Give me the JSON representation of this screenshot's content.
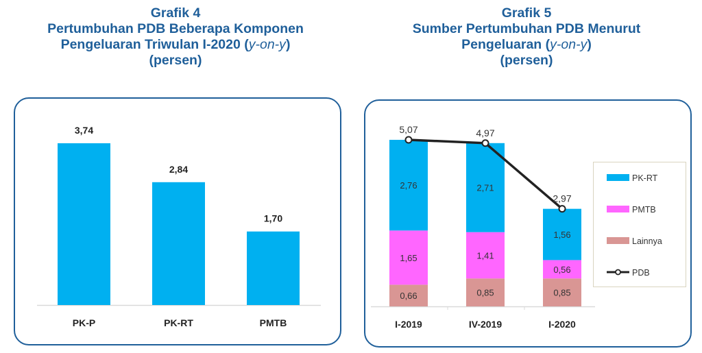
{
  "chart_data": [
    {
      "type": "bar",
      "title_lines": [
        "Grafik 4",
        "Pertumbuhan PDB Beberapa Komponen",
        "Pengeluaran Triwulan I-2020 ",
        "(persen)"
      ],
      "title_italic": "y-on-y",
      "categories": [
        "PK-P",
        "PK-RT",
        "PMTB"
      ],
      "values": [
        3.74,
        2.84,
        1.7
      ],
      "data_labels": [
        "3,74",
        "2,84",
        "1,70"
      ],
      "xlabel": "",
      "ylabel": "",
      "ylim": [
        0,
        3.74
      ],
      "grid": false,
      "bar_color": "#00b0f0"
    },
    {
      "type": "bar",
      "stacked": true,
      "title_lines": [
        "Grafik 5",
        "Sumber Pertumbuhan PDB Menurut",
        "Pengeluaran ",
        "(persen)"
      ],
      "title_italic": "y-on-y",
      "categories": [
        "I-2019",
        "IV-2019",
        "I-2020"
      ],
      "series": [
        {
          "name": "Lainnya",
          "values": [
            0.66,
            0.85,
            0.85
          ],
          "labels": [
            "0,66",
            "0,85",
            "0,85"
          ],
          "color": "#d99694"
        },
        {
          "name": "PMTB",
          "values": [
            1.65,
            1.41,
            0.56
          ],
          "labels": [
            "1,65",
            "1,41",
            "0,56"
          ],
          "color": "#ff66ff"
        },
        {
          "name": "PK-RT",
          "values": [
            2.76,
            2.71,
            1.56
          ],
          "labels": [
            "2,76",
            "2,71",
            "1,56"
          ],
          "color": "#00b0f0"
        }
      ],
      "line_series": {
        "name": "PDB",
        "values": [
          5.07,
          4.97,
          2.97
        ],
        "labels": [
          "5,07",
          "4,97",
          "2,97"
        ],
        "color": "#222222"
      },
      "legend": {
        "placement": "right",
        "entries": [
          "PK-RT",
          "PMTB",
          "Lainnya",
          "PDB"
        ]
      },
      "xlabel": "",
      "ylabel": "",
      "ylim": [
        0,
        5.07
      ],
      "grid": false
    }
  ]
}
